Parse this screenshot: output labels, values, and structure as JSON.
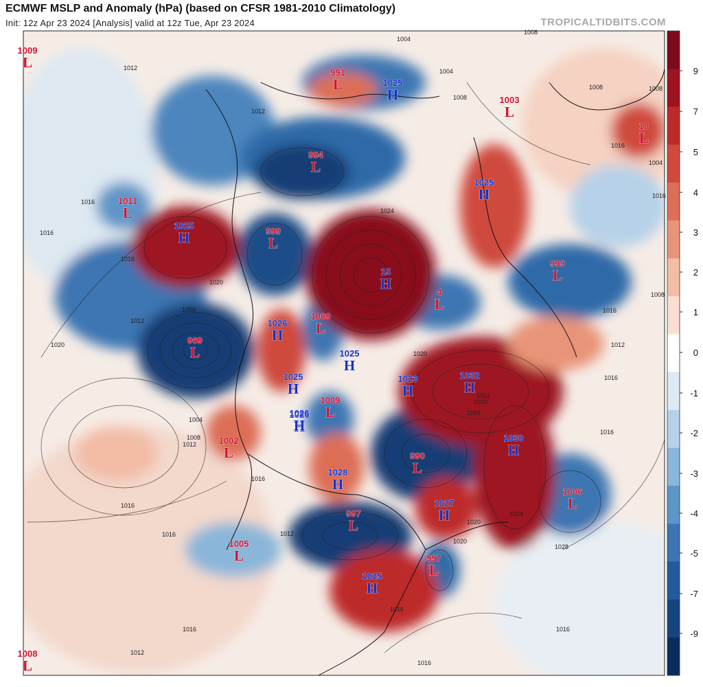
{
  "header": {
    "title": "ECMWF MSLP and Anomaly (hPa) (based on CFSR 1981-2010 Climatology)",
    "subtitle": "Init: 12z Apr 23 2024   [Analysis]   valid at 12z Tue, Apr 23 2024",
    "site": "TROPICALTIDBITS.COM"
  },
  "colors": {
    "low": "#d0102e",
    "high": "#1530c8"
  },
  "colorbar": {
    "ticks": [
      "9",
      "7",
      "5",
      "4",
      "3",
      "2",
      "1",
      "0",
      "-1",
      "-2",
      "-3",
      "-4",
      "-5",
      "-7",
      "-9"
    ],
    "colors": [
      "#7a0a1c",
      "#9e1420",
      "#bd2a2a",
      "#cf4a3c",
      "#dd6e56",
      "#e89478",
      "#f2bca6",
      "#fadfd2",
      "#ffffff",
      "#dde9f3",
      "#b6d1e8",
      "#8ab6d9",
      "#5e95c7",
      "#3c76b2",
      "#235a9a",
      "#15457e",
      "#0a2c5e"
    ]
  },
  "systems": [
    {
      "type": "L",
      "value": "1009"
    },
    {
      "type": "L",
      "value": "991"
    },
    {
      "type": "H",
      "value": "1025"
    },
    {
      "type": "L",
      "value": "1003"
    },
    {
      "type": "L",
      "value": "10"
    },
    {
      "type": "L",
      "value": "994"
    },
    {
      "type": "H",
      "value": "1025"
    },
    {
      "type": "L",
      "value": "1011"
    },
    {
      "type": "H",
      "value": "1025"
    },
    {
      "type": "L",
      "value": "999"
    },
    {
      "type": "H",
      "value": "15"
    },
    {
      "type": "L",
      "value": "4"
    },
    {
      "type": "L",
      "value": "999"
    },
    {
      "type": "L",
      "value": "969"
    },
    {
      "type": "H",
      "value": "1026"
    },
    {
      "type": "L",
      "value": "1009"
    },
    {
      "type": "H",
      "value": "1025"
    },
    {
      "type": "H",
      "value": "1025"
    },
    {
      "type": "H",
      "value": "1023"
    },
    {
      "type": "H",
      "value": "1032"
    },
    {
      "type": "L",
      "value": "1009"
    },
    {
      "type": "H",
      "value": "1026"
    },
    {
      "type": "H",
      "value": "1026"
    },
    {
      "type": "L",
      "value": "1002"
    },
    {
      "type": "L",
      "value": "990"
    },
    {
      "type": "H",
      "value": "1030"
    },
    {
      "type": "H",
      "value": "1028"
    },
    {
      "type": "H",
      "value": "1027"
    },
    {
      "type": "L",
      "value": "1006"
    },
    {
      "type": "L",
      "value": "997"
    },
    {
      "type": "L",
      "value": "1005"
    },
    {
      "type": "L",
      "value": "997"
    },
    {
      "type": "H",
      "value": "1025"
    },
    {
      "type": "L",
      "value": "1008"
    }
  ],
  "isobar_labels": [
    "1008",
    "1004",
    "1004",
    "1008",
    "1012",
    "1012",
    "1016",
    "1016",
    "1012",
    "1008",
    "1020",
    "1016",
    "1020",
    "1004",
    "1008",
    "1012",
    "1016",
    "1016",
    "1024",
    "1020",
    "1012",
    "1016",
    "1020",
    "1024",
    "1028",
    "1020",
    "1020",
    "1016",
    "1016",
    "1016",
    "1012",
    "1016",
    "1016",
    "1012",
    "1016",
    "1008",
    "1004",
    "1008",
    "1016",
    "1016",
    "1008",
    "1016",
    "1012",
    "1016"
  ]
}
